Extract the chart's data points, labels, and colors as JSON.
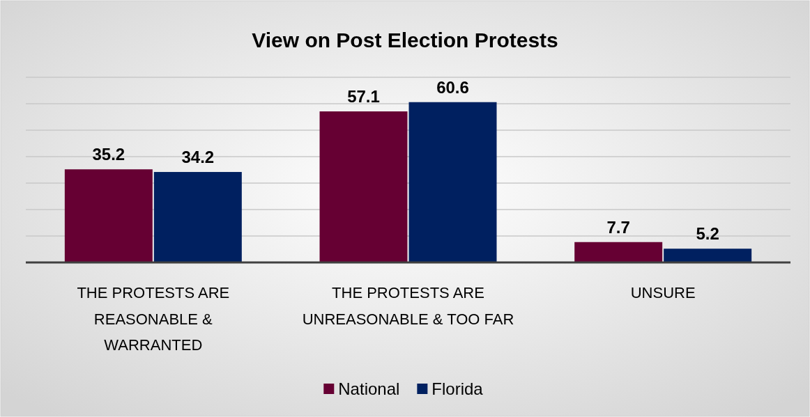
{
  "chart_data": {
    "type": "bar",
    "title": "View on Post Election Protests",
    "categories": [
      "THE PROTESTS ARE REASONABLE & WARRANTED",
      "THE PROTESTS ARE UNREASONABLE & TOO FAR",
      "UNSURE"
    ],
    "series": [
      {
        "name": "National",
        "color": "#660033",
        "values": [
          35.2,
          57.1,
          7.7
        ]
      },
      {
        "name": "Florida",
        "color": "#002060",
        "values": [
          34.2,
          60.6,
          5.2
        ]
      }
    ],
    "ylim": [
      0,
      70
    ],
    "yticks": [
      {
        "value": 0,
        "label": null
      },
      {
        "value": 10,
        "label": null
      },
      {
        "value": 20,
        "label": null
      },
      {
        "value": 30,
        "label": null
      },
      {
        "value": 40,
        "label": null
      },
      {
        "value": 50,
        "label": null
      },
      {
        "value": 60,
        "label": null
      },
      {
        "value": 70,
        "label": null
      }
    ],
    "tick_labels": "x",
    "grid": "y",
    "data_labels": true,
    "legend": "bottom"
  }
}
